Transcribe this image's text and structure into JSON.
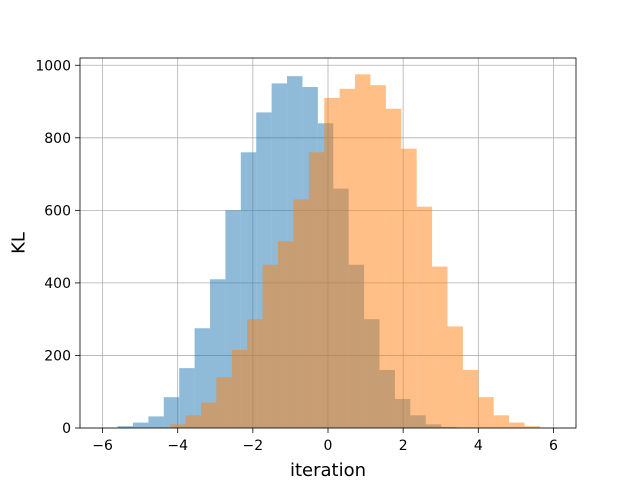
{
  "chart_data": {
    "type": "bar",
    "title": "",
    "xlabel": "iteration",
    "ylabel": "KL",
    "xlim": [
      -6.6,
      6.6
    ],
    "ylim": [
      0,
      1020
    ],
    "xticks": [
      -6,
      -4,
      -2,
      0,
      2,
      4,
      6
    ],
    "xtick_labels": [
      "−6",
      "−4",
      "−2",
      "0",
      "2",
      "4",
      "6"
    ],
    "yticks": [
      0,
      200,
      400,
      600,
      800,
      1000
    ],
    "ytick_labels": [
      "0",
      "200",
      "400",
      "600",
      "800",
      "1000"
    ],
    "grid": true,
    "legend": "none",
    "bin_width": 0.41,
    "series": [
      {
        "color": "#1f77b4",
        "opacity": 0.5,
        "bin_start": -5.6,
        "values": [
          5,
          15,
          32,
          85,
          165,
          275,
          410,
          600,
          760,
          870,
          950,
          970,
          940,
          840,
          660,
          450,
          300,
          160,
          80,
          35,
          10,
          3
        ]
      },
      {
        "color": "#ff7f0e",
        "opacity": 0.5,
        "bin_start": -4.2,
        "values": [
          10,
          35,
          70,
          140,
          215,
          300,
          450,
          515,
          630,
          760,
          910,
          935,
          975,
          945,
          880,
          770,
          610,
          445,
          280,
          160,
          85,
          35,
          15,
          5
        ]
      }
    ]
  }
}
